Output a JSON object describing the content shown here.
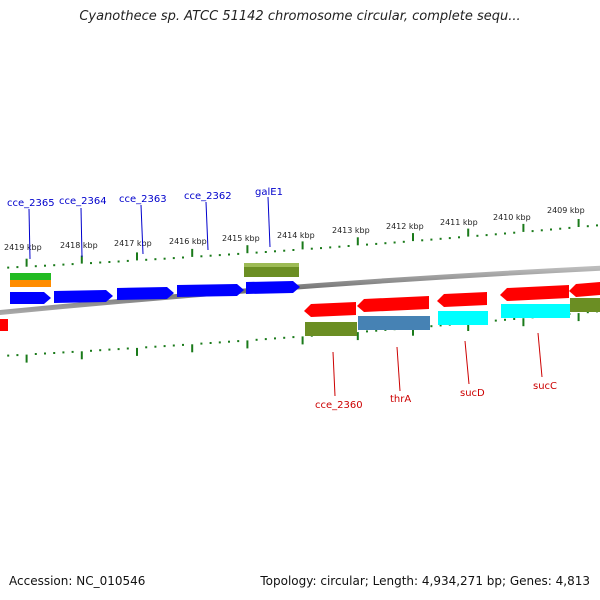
{
  "title": "Cyanothece sp. ATCC 51142 chromosome circular, complete sequ...",
  "footer": {
    "accession": "Accession: NC_010546",
    "topology": "Topology: circular; Length: 4,934,271 bp; Genes: 4,813"
  },
  "colors": {
    "backbone": "#808080",
    "tick": "#1a7a1a",
    "forward_label": "#0000cc",
    "reverse_label": "#cc0000",
    "gene_blue": "#0000ff",
    "gene_red": "#ff0000",
    "gene_olive": "#6b8e23",
    "gene_steelblue": "#4682b4",
    "gene_cyan": "#00ffff",
    "gene_green": "#22bb22",
    "gene_orange": "#ff8c00"
  },
  "kbp_labels": [
    "2419 kbp",
    "2418 kbp",
    "2417 kbp",
    "2416 kbp",
    "2415 kbp",
    "2414 kbp",
    "2413 kbp",
    "2412 kbp",
    "2411 kbp",
    "2410 kbp",
    "2409 kbp"
  ],
  "forward_gene_labels": [
    "cce_2365",
    "cce_2364",
    "cce_2363",
    "cce_2362",
    "galE1"
  ],
  "reverse_gene_labels": [
    "cce_2360",
    "thrA",
    "sucD",
    "sucC"
  ]
}
